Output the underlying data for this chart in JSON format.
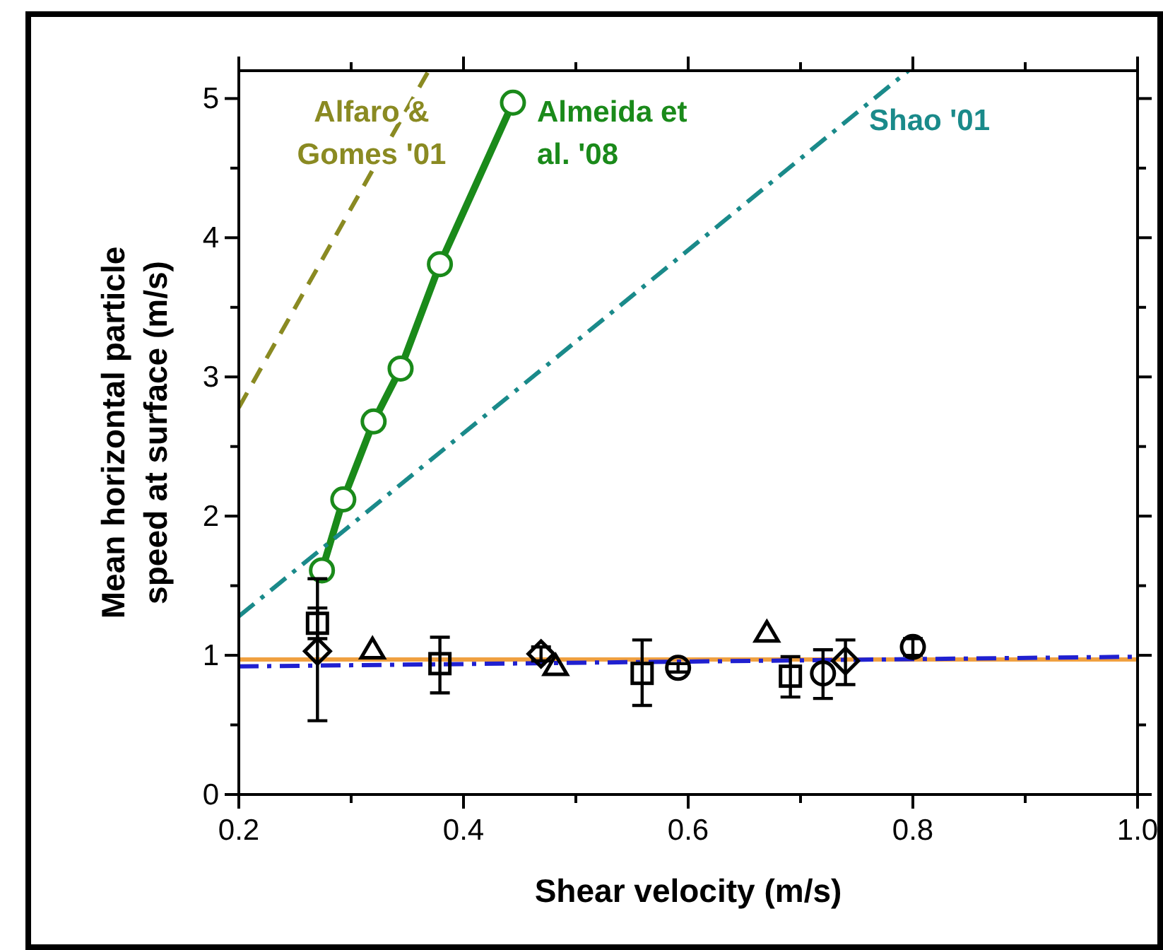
{
  "chart_data": {
    "type": "scatter",
    "xlabel": "Shear velocity (m/s)",
    "ylabel": "Mean horizontal particle speed at surface (m/s)",
    "xlim": [
      0.2,
      1.0
    ],
    "ylim": [
      0,
      5.2
    ],
    "xticks": [
      {
        "value": 0.2,
        "label": "0.2"
      },
      {
        "value": 0.3,
        "label": null
      },
      {
        "value": 0.4,
        "label": "0.4"
      },
      {
        "value": 0.5,
        "label": null
      },
      {
        "value": 0.6,
        "label": "0.6"
      },
      {
        "value": 0.7,
        "label": null
      },
      {
        "value": 0.8,
        "label": "0.8"
      },
      {
        "value": 0.9,
        "label": null
      },
      {
        "value": 1.0,
        "label": "1.0"
      }
    ],
    "yticks": [
      0,
      {
        "value": 0.5,
        "label": null
      },
      1,
      {
        "value": 1.5,
        "label": null
      },
      2,
      {
        "value": 2.5,
        "label": null
      },
      3,
      {
        "value": 3.5,
        "label": null
      },
      4,
      {
        "value": 4.5,
        "label": null
      },
      5
    ],
    "grid": false,
    "series": [
      {
        "name": "Alfaro & Gomes '01",
        "type": "line",
        "color": "#8a8a22",
        "line_style": "dashed",
        "marker": "none",
        "x": [
          0.2,
          0.369
        ],
        "values": [
          2.78,
          5.2
        ]
      },
      {
        "name": "Almeida et al. '08",
        "type": "line",
        "color": "#1a8a1a",
        "line_style": "solid",
        "marker": "circle",
        "x": [
          0.274,
          0.293,
          0.32,
          0.344,
          0.379,
          0.444
        ],
        "values": [
          1.61,
          2.12,
          2.68,
          3.06,
          3.81,
          4.97
        ]
      },
      {
        "name": "Shao '01",
        "type": "line",
        "color": "#1a8a8a",
        "line_style": "dashdot",
        "marker": "none",
        "x": [
          0.2,
          0.796
        ],
        "values": [
          1.28,
          5.2
        ]
      },
      {
        "type": "line",
        "color": "#f0a040",
        "line_style": "solid",
        "marker": "none",
        "x": [
          0.2,
          1.0
        ],
        "values": [
          0.97,
          0.97
        ]
      },
      {
        "type": "line",
        "color": "#2020d0",
        "line_style": "dashdot",
        "marker": "none",
        "x": [
          0.2,
          1.0
        ],
        "values": [
          0.92,
          0.99
        ]
      },
      {
        "type": "scatter",
        "color": "#000000",
        "marker": "square",
        "x": [
          0.27,
          0.379,
          0.559,
          0.691
        ],
        "values": [
          1.23,
          0.94,
          0.87,
          0.85
        ],
        "errors": [
          [
            1.12,
            1.34
          ],
          [
            0.73,
            1.13
          ],
          [
            0.64,
            1.11
          ],
          [
            0.7,
            0.99
          ]
        ]
      },
      {
        "type": "scatter",
        "color": "#000000",
        "marker": "triangle",
        "x": [
          0.319,
          0.482,
          0.67
        ],
        "values": [
          1.04,
          0.92,
          1.16
        ]
      },
      {
        "type": "scatter",
        "color": "#000000",
        "marker": "diamond",
        "x": [
          0.27,
          0.469,
          0.74
        ],
        "values": [
          1.03,
          1.01,
          0.96
        ],
        "errors": [
          [
            0.53,
            1.55
          ],
          [
            0.96,
            1.06
          ],
          [
            0.79,
            1.11
          ]
        ]
      },
      {
        "type": "scatter",
        "color": "#000000",
        "marker": "circle",
        "x": [
          0.591,
          0.72,
          0.8
        ],
        "values": [
          0.91,
          0.87,
          1.06
        ],
        "errors": [
          [
            0.88,
            0.94
          ],
          [
            0.69,
            1.04
          ],
          [
            1.0,
            1.12
          ]
        ]
      }
    ]
  }
}
